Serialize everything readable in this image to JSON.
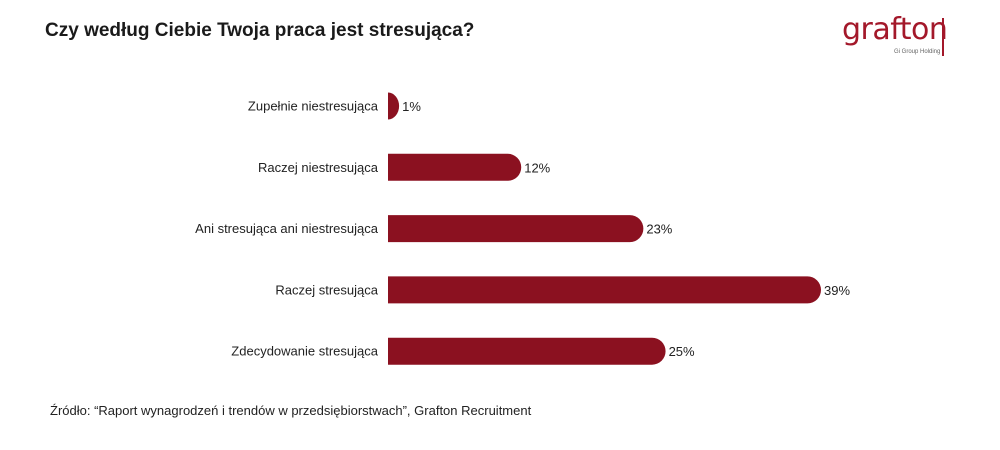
{
  "logo": {
    "name": "grafton",
    "tagline": "Gi Group Holding"
  },
  "source": "Źródło: “Raport wynagrodzeń i trendów w przedsiębiorstwach”,  Grafton Recruitment",
  "chart_data": {
    "type": "bar",
    "orientation": "horizontal",
    "title": "Czy według Ciebie Twoja praca jest stresująca?",
    "categories": [
      "Zupełnie niestresująca",
      "Raczej niestresująca",
      "Ani stresująca ani niestresująca",
      "Raczej stresująca",
      "Zdecydowanie stresująca"
    ],
    "values": [
      1,
      12,
      23,
      39,
      25
    ],
    "labels": [
      "1%",
      "12%",
      "23%",
      "39%",
      "25%"
    ],
    "unit": "%",
    "xlim": [
      0,
      39
    ],
    "grid": false,
    "color": "#8b1120"
  }
}
